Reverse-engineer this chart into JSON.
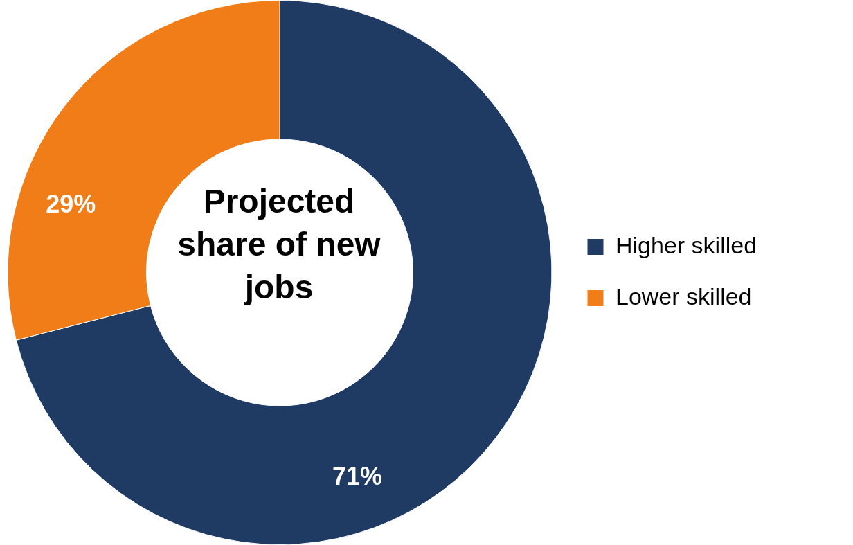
{
  "chart_data": {
    "type": "donut",
    "title": "Projected share of new jobs",
    "categories": [
      "Higher skilled",
      "Lower skilled"
    ],
    "values": [
      71,
      29
    ],
    "colors": [
      "#1f3b63",
      "#f07d17"
    ],
    "value_labels": [
      "71%",
      "29%"
    ],
    "legend": "right"
  }
}
